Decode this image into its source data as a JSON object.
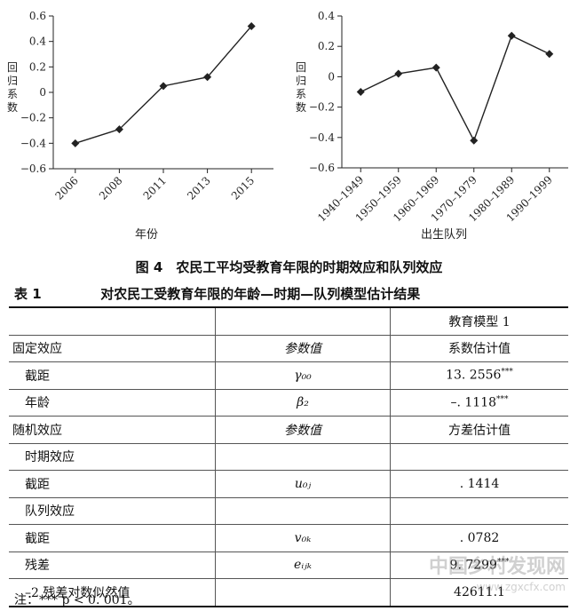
{
  "chart_data": [
    {
      "type": "line",
      "x": [
        "2006",
        "2008",
        "2011",
        "2013",
        "2015"
      ],
      "values": [
        -0.4,
        -0.29,
        0.05,
        0.12,
        0.52
      ],
      "xlabel": "年份",
      "ylabel": "回归系数",
      "ylim": [
        -0.6,
        0.6
      ],
      "yticks": [
        "0.6",
        "0.4",
        "0.2",
        "0",
        "-0.2",
        "-0.4",
        "-0.6"
      ]
    },
    {
      "type": "line",
      "x": [
        "1940–1949",
        "1950–1959",
        "1960–1969",
        "1970–1979",
        "1980–1989",
        "1990–1999"
      ],
      "values": [
        -0.1,
        0.02,
        0.06,
        -0.42,
        0.27,
        0.15
      ],
      "xlabel": "出生队列",
      "ylabel": "回归系数",
      "ylim": [
        -0.6,
        0.4
      ],
      "yticks": [
        "0.4",
        "0.2",
        "0",
        "-0.2",
        "-0.4",
        "-0.6"
      ]
    }
  ],
  "figure_caption": "图 4　农民工平均受教育年限的时期效应和队列效应",
  "table": {
    "number": "表 1",
    "title": "对农民工受教育年限的年龄—时期—队列模型估计结果",
    "header_model": "教育模型 1",
    "rows": [
      {
        "c1": "固定效应",
        "c2": "参数值",
        "c3": "系数估计值",
        "indent": false
      },
      {
        "c1": "截距",
        "c2": "γ₀₀",
        "c3": "13. 2556",
        "sig": "***",
        "indent": true
      },
      {
        "c1": "年龄",
        "c2": "β₂",
        "c3": "–. 1118",
        "sig": "***",
        "indent": true
      },
      {
        "c1": "随机效应",
        "c2": "参数值",
        "c3": "方差估计值",
        "indent": false
      },
      {
        "c1": "时期效应",
        "c2": "",
        "c3": "",
        "indent": true
      },
      {
        "c1": "截距",
        "c2": "u₀ⱼ",
        "c3": ". 1414",
        "indent": true
      },
      {
        "c1": "队列效应",
        "c2": "",
        "c3": "",
        "indent": true
      },
      {
        "c1": "截距",
        "c2": "v₀ₖ",
        "c3": ". 0782",
        "indent": true
      },
      {
        "c1": "残差",
        "c2": "eᵢⱼₖ",
        "c3": "9. 7299",
        "sig": "***",
        "indent": true
      },
      {
        "c1": "–2 残差对数似然值",
        "c2": "",
        "c3": "42611.1",
        "indent": true
      }
    ]
  },
  "note": "注：*** p < 0. 001。",
  "watermark": {
    "line1": "中国乡村发现网",
    "line2": "www.zgxcfx.com"
  }
}
